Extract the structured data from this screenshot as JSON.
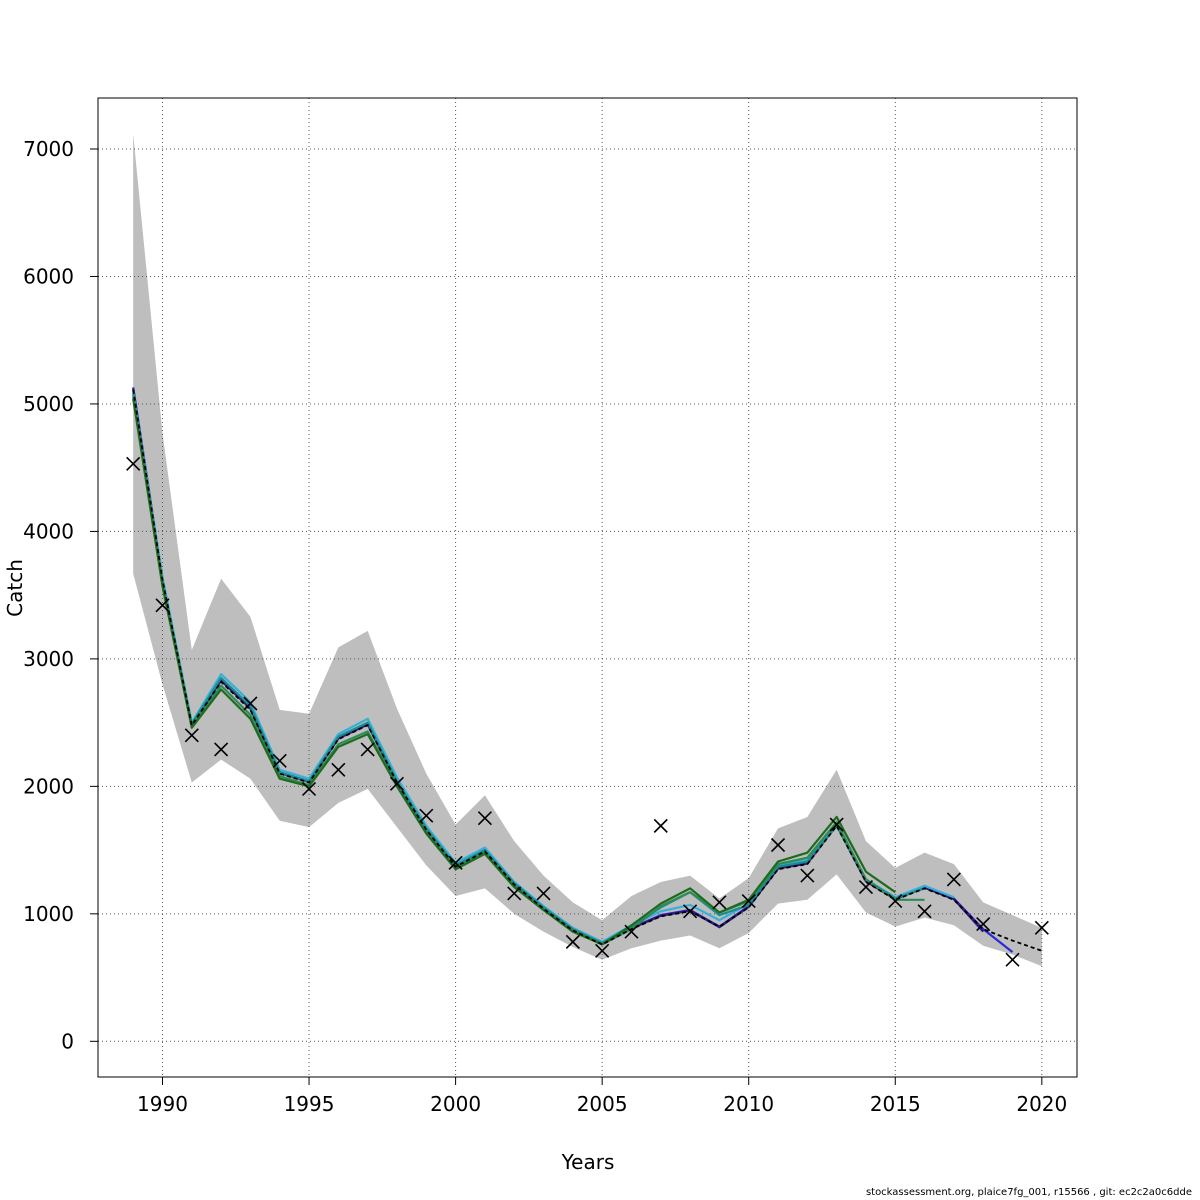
{
  "chart_data": {
    "type": "line",
    "xlabel": "Years",
    "ylabel": "Catch",
    "xlim": [
      1987.8,
      2021.2
    ],
    "ylim": [
      -280,
      7400
    ],
    "x_ticks": [
      1990,
      1995,
      2000,
      2005,
      2010,
      2015,
      2020
    ],
    "x_tick_labels": [
      "1990",
      "1995",
      "2000",
      "2005",
      "2010",
      "2015",
      "2020"
    ],
    "y_ticks": [
      0,
      1000,
      2000,
      3000,
      4000,
      5000,
      6000,
      7000
    ],
    "y_tick_labels": [
      "0",
      "1000",
      "2000",
      "3000",
      "4000",
      "5000",
      "6000",
      "7000"
    ],
    "grid": true,
    "colors": {
      "band": "#bebebe",
      "dashed": "#000000",
      "series": [
        "#2b2bd6",
        "#2e1a7a",
        "#36b0d8",
        "#1a8c8c",
        "#2e8b57",
        "#1e6b1e",
        "#8a8a10"
      ],
      "observed": "#000000"
    },
    "confidence_band": {
      "x": [
        1989,
        1990,
        1991,
        1992,
        1993,
        1994,
        1995,
        1996,
        1997,
        1998,
        1999,
        2000,
        2001,
        2002,
        2003,
        2004,
        2005,
        2006,
        2007,
        2008,
        2009,
        2010,
        2011,
        2012,
        2013,
        2014,
        2015,
        2016,
        2017,
        2018,
        2019,
        2020
      ],
      "lower": [
        3670,
        2800,
        2030,
        2210,
        2060,
        1730,
        1680,
        1870,
        1980,
        1680,
        1380,
        1140,
        1200,
        1000,
        860,
        740,
        640,
        730,
        790,
        830,
        730,
        850,
        1080,
        1110,
        1310,
        1010,
        900,
        970,
        910,
        750,
        680,
        590
      ],
      "upper": [
        7120,
        4770,
        3070,
        3630,
        3330,
        2600,
        2570,
        3090,
        3220,
        2610,
        2100,
        1700,
        1930,
        1570,
        1300,
        1090,
        950,
        1140,
        1250,
        1300,
        1120,
        1280,
        1670,
        1760,
        2130,
        1570,
        1360,
        1480,
        1390,
        1090,
        990,
        890
      ]
    },
    "series": [
      {
        "style": "dashed",
        "x": [
          1989,
          1990,
          1991,
          1992,
          1993,
          1994,
          1995,
          1996,
          1997,
          1998,
          1999,
          2000,
          2001,
          2002,
          2003,
          2004,
          2005,
          2006,
          2007,
          2008,
          2009,
          2010,
          2011,
          2012,
          2013,
          2014,
          2015,
          2016,
          2017,
          2018,
          2019,
          2020
        ],
        "values": [
          5110,
          3620,
          2480,
          2820,
          2600,
          2100,
          2030,
          2370,
          2480,
          2030,
          1660,
          1370,
          1490,
          1230,
          1040,
          870,
          760,
          880,
          980,
          1020,
          900,
          1050,
          1350,
          1390,
          1690,
          1250,
          1110,
          1200,
          1110,
          880,
          790,
          710
        ]
      },
      {
        "x": [
          1989,
          1990,
          1991,
          1992,
          1993,
          1994,
          1995,
          1996,
          1997,
          1998,
          1999,
          2000,
          2001,
          2002,
          2003,
          2004,
          2005,
          2006,
          2007,
          2008,
          2009,
          2010,
          2011,
          2012,
          2013,
          2014,
          2015,
          2016,
          2017,
          2018,
          2019
        ],
        "values": [
          5130,
          3630,
          2490,
          2840,
          2620,
          2110,
          2040,
          2380,
          2490,
          2040,
          1670,
          1380,
          1500,
          1240,
          1050,
          880,
          770,
          890,
          990,
          1030,
          900,
          1060,
          1360,
          1400,
          1700,
          1260,
          1120,
          1210,
          1120,
          880,
          700
        ]
      },
      {
        "x": [
          1989,
          1990,
          1991,
          1992,
          1993,
          1994,
          1995,
          1996,
          1997,
          1998,
          1999,
          2000,
          2001,
          2002,
          2003,
          2004,
          2005,
          2006,
          2007,
          2008,
          2009,
          2010,
          2011,
          2012,
          2013,
          2014,
          2015,
          2016,
          2017,
          2018
        ],
        "values": [
          5120,
          3625,
          2485,
          2830,
          2610,
          2105,
          2035,
          2375,
          2485,
          2035,
          1665,
          1375,
          1495,
          1235,
          1045,
          875,
          765,
          885,
          985,
          1025,
          895,
          1055,
          1355,
          1395,
          1695,
          1255,
          1115,
          1205,
          1115,
          860
        ]
      },
      {
        "x": [
          1989,
          1990,
          1991,
          1992,
          1993,
          1994,
          1995,
          1996,
          1997,
          1998,
          1999,
          2000,
          2001,
          2002,
          2003,
          2004,
          2005,
          2006,
          2007,
          2008,
          2009,
          2010,
          2011,
          2012,
          2013,
          2014,
          2015,
          2016,
          2017
        ],
        "values": [
          5100,
          3640,
          2500,
          2880,
          2660,
          2130,
          2060,
          2410,
          2530,
          2070,
          1690,
          1400,
          1520,
          1250,
          1060,
          890,
          780,
          910,
          1020,
          1070,
          950,
          1080,
          1380,
          1420,
          1700,
          1270,
          1130,
          1220,
          1130
        ]
      },
      {
        "x": [
          1989,
          1990,
          1991,
          1992,
          1993,
          1994,
          1995,
          1996,
          1997,
          1998,
          1999,
          2000,
          2001,
          2002,
          2003,
          2004,
          2005,
          2006,
          2007,
          2008,
          2009,
          2010,
          2011,
          2012,
          2013,
          2014,
          2015,
          2016
        ],
        "values": [
          5080,
          3610,
          2490,
          2850,
          2630,
          2110,
          2040,
          2390,
          2500,
          2040,
          1670,
          1380,
          1500,
          1240,
          1050,
          880,
          770,
          900,
          1050,
          1170,
          990,
          1070,
          1370,
          1410,
          1690,
          1270,
          1120,
          1200
        ]
      },
      {
        "x": [
          1989,
          1990,
          1991,
          1992,
          1993,
          1994,
          1995,
          1996,
          1997,
          1998,
          1999,
          2000,
          2001,
          2002,
          2003,
          2004,
          2005,
          2006,
          2007,
          2008,
          2009,
          2010,
          2011,
          2012,
          2013,
          2014,
          2015,
          2016
        ],
        "values": [
          5060,
          3590,
          2470,
          2790,
          2560,
          2080,
          2010,
          2330,
          2430,
          2010,
          1640,
          1360,
          1480,
          1220,
          1030,
          870,
          760,
          880,
          1060,
          1170,
          1010,
          1100,
          1390,
          1440,
          1720,
          1270,
          1110,
          1110
        ]
      },
      {
        "x": [
          1989,
          1990,
          1991,
          1992,
          1993,
          1994,
          1995,
          1996,
          1997,
          1998,
          1999,
          2000,
          2001,
          2002,
          2003,
          2004,
          2005,
          2006,
          2007,
          2008,
          2009,
          2010,
          2011,
          2012,
          2013,
          2014,
          2015
        ],
        "values": [
          5040,
          3570,
          2460,
          2760,
          2530,
          2060,
          2000,
          2310,
          2410,
          2000,
          1630,
          1350,
          1470,
          1210,
          1030,
          860,
          760,
          910,
          1080,
          1200,
          1010,
          1110,
          1410,
          1480,
          1760,
          1330,
          1170
        ]
      }
    ],
    "observed": {
      "marker": "x",
      "x": [
        1989,
        1990,
        1991,
        1992,
        1993,
        1994,
        1995,
        1996,
        1997,
        1998,
        1999,
        2000,
        2001,
        2002,
        2003,
        2004,
        2005,
        2006,
        2007,
        2008,
        2009,
        2010,
        2011,
        2012,
        2013,
        2014,
        2015,
        2016,
        2017,
        2018,
        2019,
        2020
      ],
      "values": [
        4530,
        3420,
        2400,
        2290,
        2650,
        2200,
        1980,
        2130,
        2290,
        2020,
        1770,
        1400,
        1750,
        1160,
        1160,
        780,
        710,
        860,
        1690,
        1020,
        1090,
        1100,
        1540,
        1300,
        1700,
        1210,
        1100,
        1020,
        1270,
        920,
        640,
        890
      ]
    }
  },
  "footer": "stockassessment.org, plaice7fg_001, r15566 , git: ec2c2a0c6dde"
}
